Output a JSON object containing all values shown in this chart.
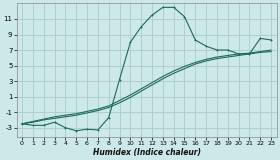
{
  "xlabel": "Humidex (Indice chaleur)",
  "bg_color": "#cde8e8",
  "line_color": "#1a6b5a",
  "grid_color": "#b0d0d0",
  "xlim": [
    -0.5,
    23.5
  ],
  "ylim": [
    -4.2,
    13.0
  ],
  "xticks": [
    0,
    1,
    2,
    3,
    4,
    5,
    6,
    7,
    8,
    9,
    10,
    11,
    12,
    13,
    14,
    15,
    16,
    17,
    18,
    19,
    20,
    21,
    22,
    23
  ],
  "yticks": [
    -3,
    -1,
    1,
    3,
    5,
    7,
    9,
    11
  ],
  "series1_x": [
    0,
    1,
    2,
    3,
    4,
    5,
    6,
    7,
    8,
    9,
    10,
    11,
    12,
    13,
    14,
    15,
    16,
    17,
    18,
    19,
    20,
    21,
    22,
    23
  ],
  "series1_y": [
    -2.5,
    -2.7,
    -2.7,
    -2.3,
    -3.0,
    -3.4,
    -3.2,
    -3.3,
    -1.7,
    3.2,
    8.0,
    10.0,
    11.5,
    12.5,
    12.5,
    11.3,
    8.3,
    7.5,
    7.0,
    7.0,
    6.5,
    6.5,
    8.5,
    8.3
  ],
  "series2_x": [
    0,
    1,
    2,
    3,
    4,
    5,
    6,
    7,
    8,
    9,
    10,
    11,
    12,
    13,
    14,
    15,
    16,
    17,
    18,
    19,
    20,
    21,
    22,
    23
  ],
  "series2_y": [
    -2.5,
    -2.3,
    -2.0,
    -1.8,
    -1.6,
    -1.4,
    -1.1,
    -0.8,
    -0.4,
    0.2,
    0.9,
    1.7,
    2.5,
    3.3,
    4.0,
    4.6,
    5.2,
    5.6,
    5.9,
    6.1,
    6.3,
    6.5,
    6.7,
    6.8
  ],
  "series3_x": [
    0,
    1,
    2,
    3,
    4,
    5,
    6,
    7,
    8,
    9,
    10,
    11,
    12,
    13,
    14,
    15,
    16,
    17,
    18,
    19,
    20,
    21,
    22,
    23
  ],
  "series3_y": [
    -2.5,
    -2.2,
    -1.9,
    -1.6,
    -1.4,
    -1.2,
    -0.9,
    -0.6,
    -0.2,
    0.5,
    1.2,
    2.0,
    2.8,
    3.6,
    4.3,
    4.9,
    5.4,
    5.8,
    6.1,
    6.3,
    6.5,
    6.6,
    6.8,
    7.0
  ]
}
